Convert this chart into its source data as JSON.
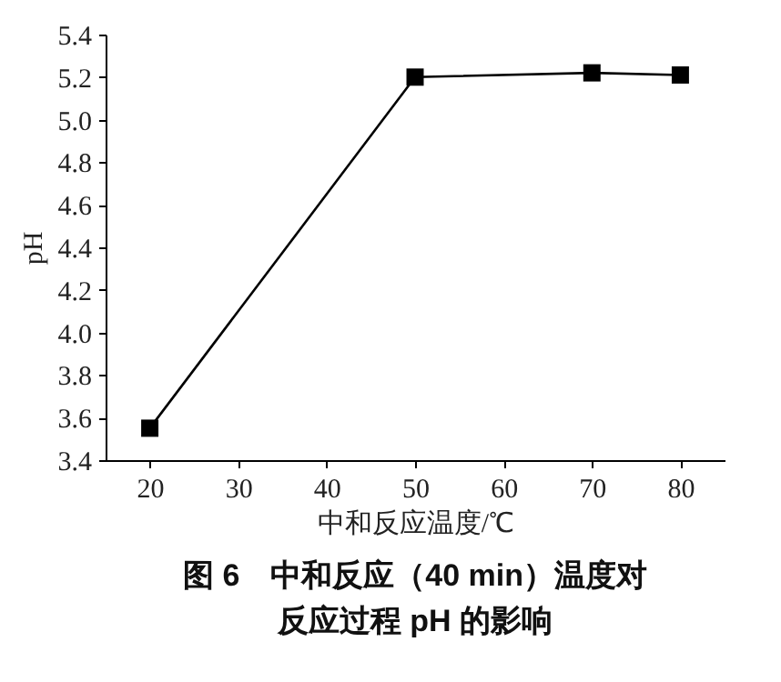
{
  "chart_data": {
    "type": "line",
    "title": "图 6　中和反应（40 min）温度对",
    "subtitle": "反应过程 pH 的影响",
    "xlabel": "中和反应温度/℃",
    "ylabel": "pH",
    "x": [
      20,
      50,
      70,
      80
    ],
    "series": [
      {
        "color": "#000000",
        "values": [
          3.55,
          5.2,
          5.22,
          5.21
        ]
      }
    ],
    "xlim": [
      15,
      85
    ],
    "xticks": [
      20,
      30,
      40,
      50,
      60,
      70,
      80
    ],
    "ylim": [
      3.4,
      5.4
    ],
    "yticks": [
      3.4,
      3.6,
      3.8,
      {
        "value": 4,
        "label": "4.0"
      },
      4.2,
      4.4,
      4.6,
      4.8,
      {
        "value": 5,
        "label": "5.0"
      },
      5.2,
      5.4
    ],
    "marker": "square",
    "line_style": "solid",
    "grid": false
  }
}
